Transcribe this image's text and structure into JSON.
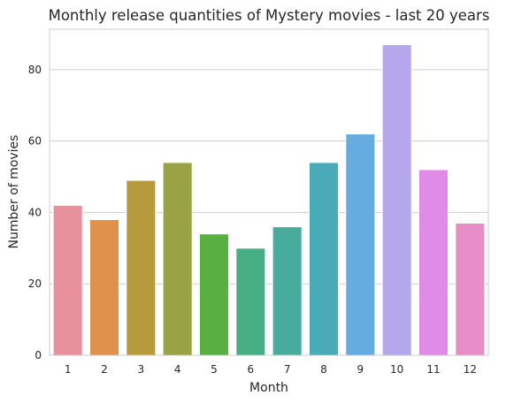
{
  "chart_data": {
    "type": "bar",
    "title": "Monthly release quantities of Mystery movies - last 20 years",
    "xlabel": "Month",
    "ylabel": "Number of movies",
    "categories": [
      "1",
      "2",
      "3",
      "4",
      "5",
      "6",
      "7",
      "8",
      "9",
      "10",
      "11",
      "12"
    ],
    "values": [
      42,
      38,
      49,
      54,
      34,
      30,
      36,
      54,
      62,
      87,
      52,
      37
    ],
    "colors": [
      "#e8909c",
      "#e0914b",
      "#b7993e",
      "#99a245",
      "#58b040",
      "#48ae84",
      "#47ab9e",
      "#49aab8",
      "#66addf",
      "#b4a7ec",
      "#e08be8",
      "#e78dc8"
    ],
    "ylim": [
      0,
      91.35
    ],
    "yticks": [
      0,
      20,
      40,
      60,
      80
    ],
    "grid": true,
    "grid_axis": "y",
    "grid_color": "#cccccc",
    "axes_edge_color": "#cccccc",
    "background": "#ffffff"
  }
}
